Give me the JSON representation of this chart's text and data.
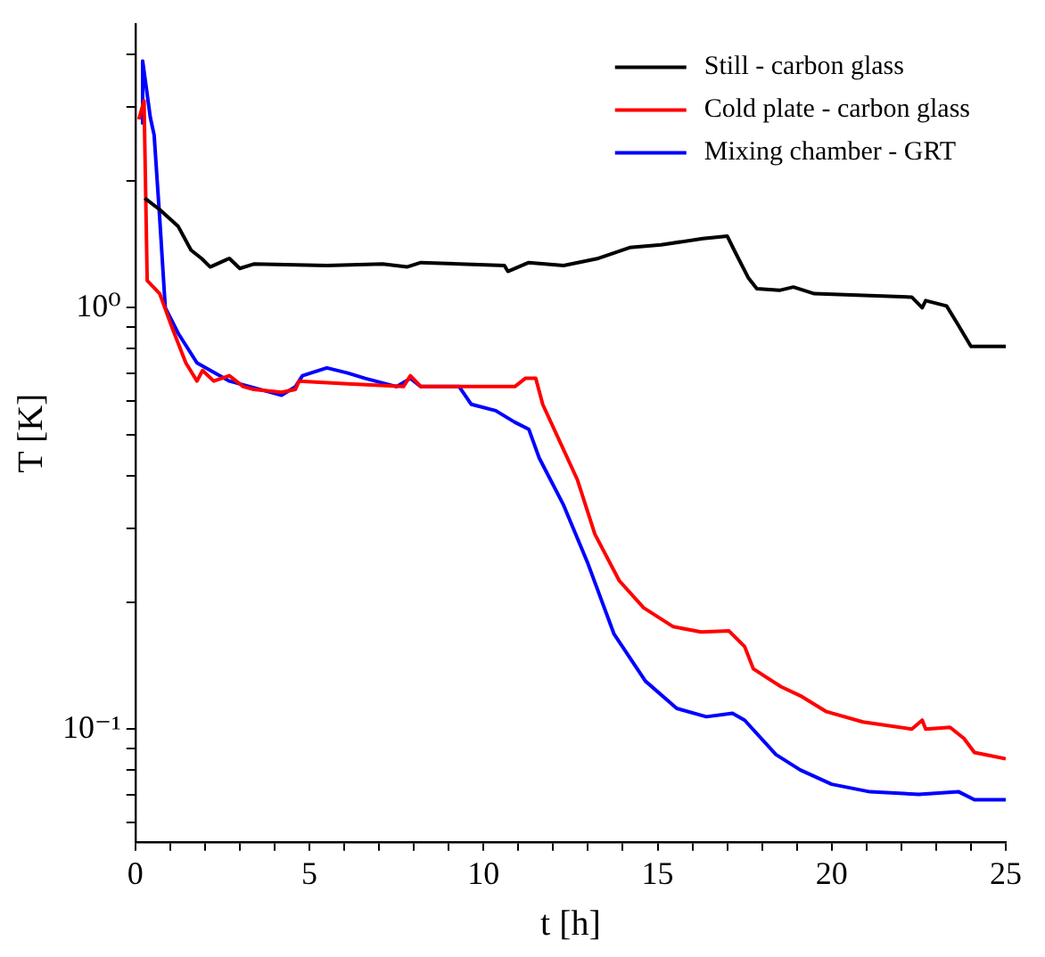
{
  "chart_data": {
    "type": "line",
    "xlabel": "t [h]",
    "ylabel": "T [K]",
    "log": "y",
    "legend": "top right",
    "grid": false,
    "marker": "none",
    "line_style": "solid",
    "xlim": [
      0,
      25
    ],
    "ylim": [
      0.054,
      4.7
    ],
    "xticks": [
      0,
      {
        "value": 1,
        "label": null
      },
      {
        "value": 2,
        "label": null
      },
      {
        "value": 3,
        "label": null
      },
      {
        "value": 4,
        "label": null
      },
      5,
      {
        "value": 6,
        "label": null
      },
      {
        "value": 7,
        "label": null
      },
      {
        "value": 8,
        "label": null
      },
      {
        "value": 9,
        "label": null
      },
      10,
      {
        "value": 11,
        "label": null
      },
      {
        "value": 12,
        "label": null
      },
      {
        "value": 13,
        "label": null
      },
      {
        "value": 14,
        "label": null
      },
      15,
      {
        "value": 16,
        "label": null
      },
      {
        "value": 17,
        "label": null
      },
      {
        "value": 18,
        "label": null
      },
      {
        "value": 19,
        "label": null
      },
      20,
      {
        "value": 21,
        "label": null
      },
      {
        "value": 22,
        "label": null
      },
      {
        "value": 23,
        "label": null
      },
      {
        "value": 24,
        "label": null
      },
      25
    ],
    "yticks": [
      {
        "value": 0.06,
        "label": null
      },
      {
        "value": 0.07,
        "label": null
      },
      {
        "value": 0.08,
        "label": null
      },
      {
        "value": 0.09,
        "label": null
      },
      {
        "value": 0.1,
        "label": "10⁻¹"
      },
      {
        "value": 0.2,
        "label": null
      },
      {
        "value": 0.3,
        "label": null
      },
      {
        "value": 0.4,
        "label": null
      },
      {
        "value": 0.5,
        "label": null
      },
      {
        "value": 0.6,
        "label": null
      },
      {
        "value": 0.7,
        "label": null
      },
      {
        "value": 0.8,
        "label": null
      },
      {
        "value": 0.9,
        "label": null
      },
      {
        "value": 1,
        "label": "10⁰"
      },
      {
        "value": 2,
        "label": null
      },
      {
        "value": 3,
        "label": null
      },
      {
        "value": 4,
        "label": null
      }
    ],
    "series": [
      {
        "name": "Still - carbon glass",
        "color": "#000000",
        "x": [
          0.27,
          0.7,
          1.23,
          1.6,
          1.9,
          2.15,
          2.7,
          3.0,
          3.4,
          5.5,
          7.1,
          7.8,
          8.2,
          10.6,
          10.7,
          11.3,
          12.3,
          13.3,
          14.2,
          15.1,
          16.3,
          17.0,
          17.2,
          17.6,
          17.85,
          18.5,
          18.9,
          19.5,
          22.3,
          22.6,
          22.7,
          23.3,
          23.6,
          24.0,
          25
        ],
        "values": [
          1.82,
          1.71,
          1.56,
          1.37,
          1.31,
          1.25,
          1.31,
          1.24,
          1.27,
          1.26,
          1.27,
          1.25,
          1.28,
          1.26,
          1.22,
          1.28,
          1.26,
          1.31,
          1.39,
          1.41,
          1.46,
          1.48,
          1.37,
          1.18,
          1.11,
          1.1,
          1.12,
          1.08,
          1.06,
          1.0,
          1.04,
          1.01,
          0.92,
          0.81,
          0.81
        ]
      },
      {
        "name": "Cold plate - carbon glass",
        "color": "#ff0000",
        "x": [
          0.1,
          0.25,
          0.34,
          0.7,
          1.07,
          1.45,
          1.77,
          1.93,
          2.25,
          2.7,
          3.1,
          3.4,
          4.2,
          4.6,
          4.7,
          6.1,
          7.7,
          7.9,
          8.2,
          9.5,
          10.9,
          11.2,
          11.5,
          11.7,
          12.7,
          13.2,
          13.9,
          14.6,
          15.45,
          16.25,
          17.05,
          17.5,
          17.75,
          18.55,
          19.1,
          19.85,
          20.9,
          22.3,
          22.6,
          22.7,
          23.4,
          23.8,
          24.1,
          25
        ],
        "values": [
          2.8,
          3.1,
          1.16,
          1.08,
          0.89,
          0.74,
          0.67,
          0.71,
          0.67,
          0.69,
          0.65,
          0.64,
          0.63,
          0.64,
          0.67,
          0.66,
          0.65,
          0.69,
          0.65,
          0.65,
          0.65,
          0.68,
          0.68,
          0.59,
          0.39,
          0.29,
          0.225,
          0.194,
          0.175,
          0.17,
          0.171,
          0.157,
          0.139,
          0.126,
          0.12,
          0.11,
          0.104,
          0.1,
          0.105,
          0.1,
          0.101,
          0.095,
          0.088,
          0.085
        ]
      },
      {
        "name": "Mixing chamber - GRT",
        "color": "#0000ff",
        "x": [
          0.16,
          0.21,
          0.43,
          0.54,
          0.7,
          0.86,
          1.23,
          1.77,
          2.7,
          4.2,
          4.6,
          4.8,
          5.5,
          6.1,
          6.6,
          7.5,
          7.9,
          8.2,
          9.3,
          9.65,
          10.35,
          10.9,
          11.3,
          11.6,
          12.3,
          13.0,
          13.75,
          14.65,
          15.55,
          16.4,
          17.15,
          17.5,
          18.4,
          19.1,
          20.0,
          21.1,
          22.5,
          23.65,
          24.1,
          25
        ],
        "values": [
          2.75,
          3.85,
          2.83,
          2.57,
          1.63,
          1.0,
          0.87,
          0.74,
          0.67,
          0.62,
          0.65,
          0.69,
          0.72,
          0.7,
          0.68,
          0.65,
          0.68,
          0.65,
          0.65,
          0.59,
          0.57,
          0.535,
          0.515,
          0.44,
          0.34,
          0.247,
          0.168,
          0.13,
          0.112,
          0.107,
          0.109,
          0.105,
          0.087,
          0.08,
          0.074,
          0.071,
          0.07,
          0.071,
          0.068,
          0.068
        ]
      }
    ]
  }
}
